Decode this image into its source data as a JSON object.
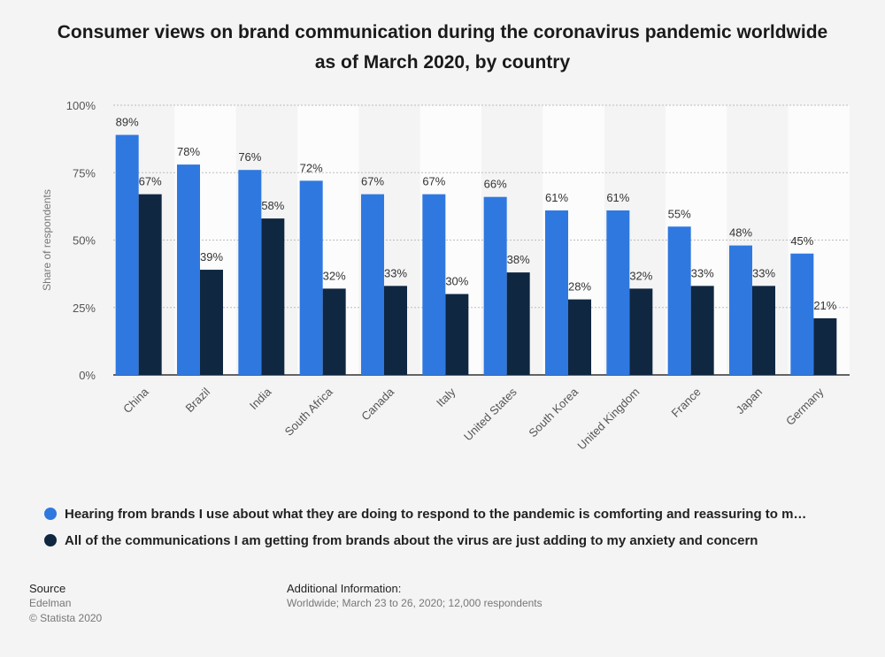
{
  "chart_data": {
    "type": "bar",
    "title": "Consumer views on brand communication during the coronavirus pandemic worldwide as of March 2020, by country",
    "xlabel": "",
    "ylabel": "Share of respondents",
    "ylim": [
      0,
      100
    ],
    "yticks": [
      "0%",
      "25%",
      "50%",
      "75%",
      "100%"
    ],
    "ytick_values": [
      0,
      25,
      50,
      75,
      100
    ],
    "categories": [
      "China",
      "Brazil",
      "India",
      "South Africa",
      "Canada",
      "Italy",
      "United States",
      "South Korea",
      "United Kingdom",
      "France",
      "Japan",
      "Germany"
    ],
    "series": [
      {
        "name": "Hearing from brands I use about what they are doing to respond to the pandemic is comforting and reassuring to m…",
        "color": "#2f78e0",
        "values": [
          89,
          78,
          76,
          72,
          67,
          67,
          66,
          61,
          61,
          55,
          48,
          45
        ]
      },
      {
        "name": "All of the communications I am getting from brands about the virus are just adding to my anxiety and concern",
        "color": "#0f2741",
        "values": [
          67,
          39,
          58,
          32,
          33,
          30,
          38,
          28,
          32,
          33,
          33,
          21
        ]
      }
    ],
    "value_suffix": "%",
    "legend_position": "bottom-left"
  },
  "footer": {
    "source_heading": "Source",
    "source_name": "Edelman",
    "copyright": "© Statista 2020",
    "info_heading": "Additional Information:",
    "info_text": "Worldwide; March 23 to 26, 2020; 12,000 respondents"
  }
}
